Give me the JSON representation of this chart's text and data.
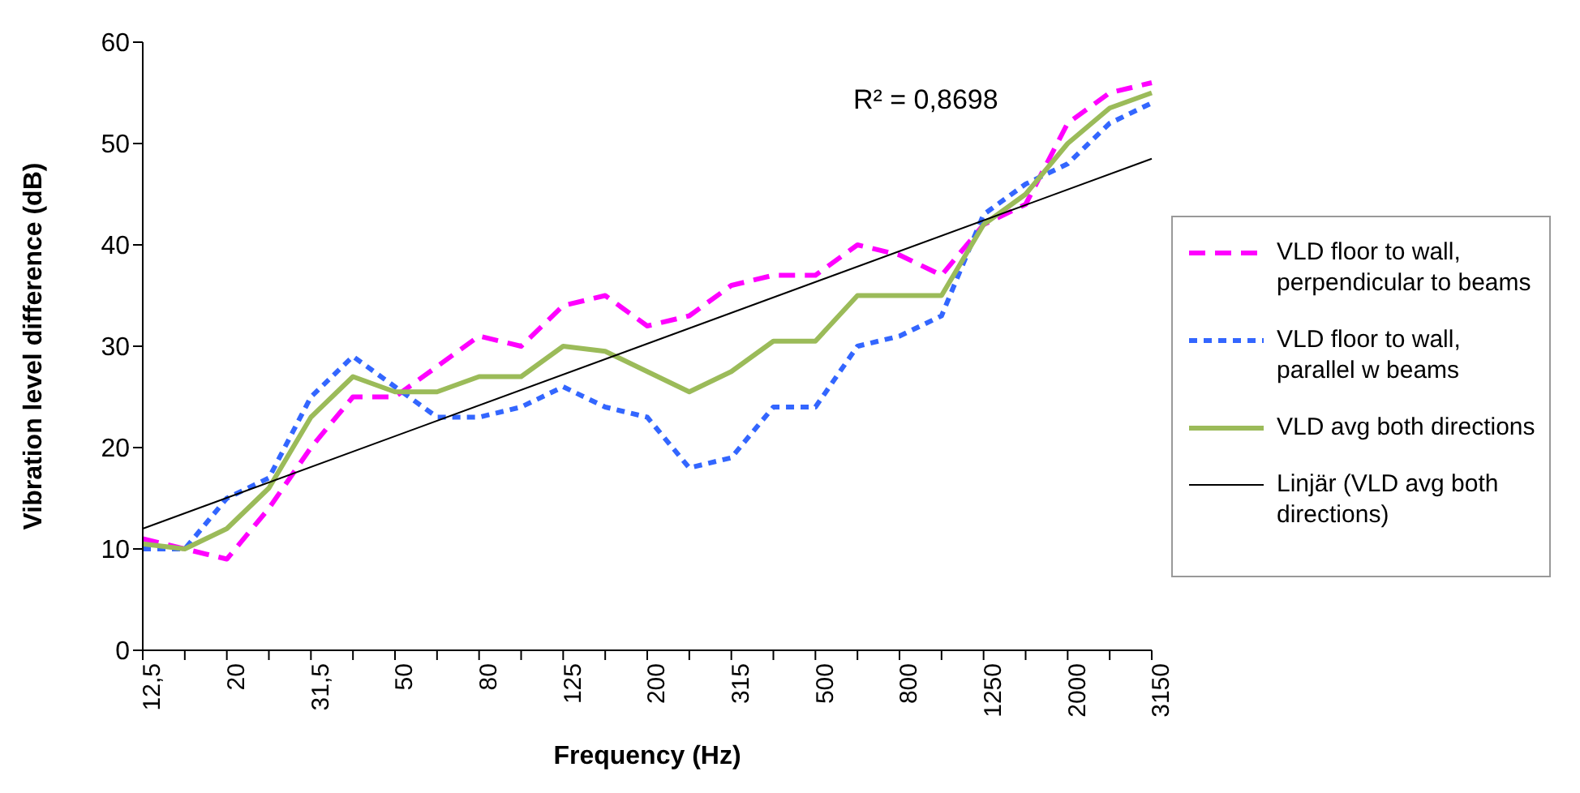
{
  "chart_data": {
    "type": "line",
    "xlabel": "Frequency (Hz)",
    "ylabel": "Vibration level difference (dB)",
    "categories": [
      "12,5",
      null,
      "20",
      null,
      "31,5",
      null,
      "50",
      null,
      "80",
      null,
      "125",
      null,
      "200",
      null,
      "315",
      null,
      "500",
      null,
      "800",
      null,
      "1250",
      null,
      "2000",
      null,
      "3150"
    ],
    "series": [
      {
        "name": "VLD floor to wall, perpendicular to beams",
        "color": "#ff00ff",
        "line_style": "dashed",
        "values": [
          11,
          10,
          9,
          14,
          20,
          25,
          25,
          28,
          31,
          30,
          34,
          35,
          32,
          33,
          36,
          37,
          37,
          40,
          39,
          37,
          42,
          44,
          52,
          55,
          56
        ]
      },
      {
        "name": "VLD floor to wall, parallel w beams",
        "color": "#3366ff",
        "line_style": "dotted",
        "values": [
          10,
          10,
          15,
          17,
          25,
          29,
          26,
          23,
          23,
          24,
          26,
          24,
          23,
          18,
          19,
          24,
          24,
          30,
          31,
          33,
          43,
          46,
          48,
          52,
          54
        ]
      },
      {
        "name": "VLD avg both directions",
        "color": "#9bbb59",
        "line_style": "solid",
        "values": [
          10.5,
          10,
          12,
          16,
          23,
          27,
          25.5,
          25.5,
          27,
          27,
          30,
          29.5,
          27.5,
          25.5,
          27.5,
          30.5,
          30.5,
          35,
          35,
          35,
          42,
          45,
          50,
          53.5,
          55
        ]
      },
      {
        "name": "Linjär (VLD avg both directions)",
        "color": "#000000",
        "line_style": "solid",
        "values": [
          12,
          null,
          null,
          null,
          null,
          null,
          null,
          null,
          null,
          null,
          null,
          null,
          null,
          null,
          null,
          null,
          null,
          null,
          null,
          null,
          null,
          null,
          null,
          null,
          48.5
        ]
      }
    ],
    "ylim": [
      0,
      60
    ],
    "yticks": [
      0,
      10,
      20,
      30,
      40,
      50,
      60
    ],
    "legend": "right",
    "marker": "none",
    "annotations": [
      "R² = 0,8698"
    ]
  }
}
